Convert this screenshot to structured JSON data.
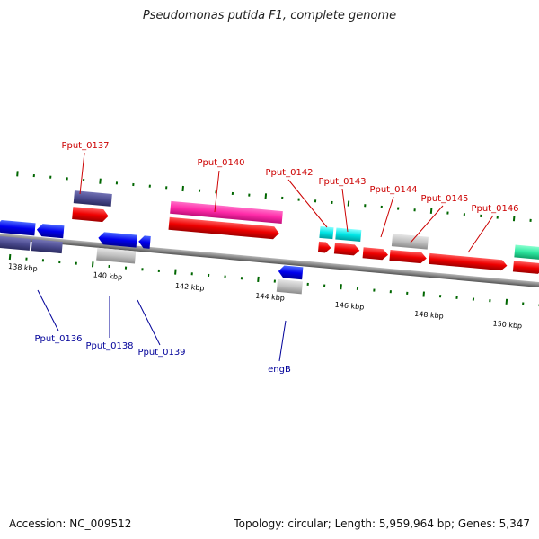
{
  "title": "Pseudomonas putida F1, complete genome",
  "footer": {
    "accession": "Accession: NC_009512",
    "topology": "Topology: circular; Length: 5,959,964 bp; Genes: 5,347"
  },
  "scale": {
    "tick_labels": [
      "138 kbp",
      "140 kbp",
      "142 kbp",
      "144 kbp",
      "146 kbp",
      "148 kbp",
      "150 kbp"
    ]
  },
  "genes": [
    {
      "label": "Pput_0136",
      "strand": "reverse",
      "color": "#0000ff"
    },
    {
      "label": "Pput_0137",
      "strand": "forward",
      "color": "#ff0000"
    },
    {
      "label": "Pput_0138",
      "strand": "reverse",
      "color": "#0000ff"
    },
    {
      "label": "Pput_0139",
      "strand": "reverse",
      "color": "#0000ff"
    },
    {
      "label": "Pput_0140",
      "strand": "forward",
      "color": "#ff0000"
    },
    {
      "label": "engB",
      "strand": "reverse",
      "color": "#0000ff"
    },
    {
      "label": "Pput_0142",
      "strand": "forward",
      "color": "#ff0000"
    },
    {
      "label": "Pput_0143",
      "strand": "forward",
      "color": "#ff0000"
    },
    {
      "label": "Pput_0144",
      "strand": "forward",
      "color": "#ff0000"
    },
    {
      "label": "Pput_0145",
      "strand": "forward",
      "color": "#ff0000"
    },
    {
      "label": "Pput_0146",
      "strand": "forward",
      "color": "#ff0000"
    }
  ],
  "colors": {
    "forward_label": "#cc0000",
    "reverse_label": "#000099",
    "backbone": "#888888",
    "tick": "#006600",
    "cog_purple": "#4b4b8f",
    "cog_pink": "#ff2aa8",
    "cog_cyan": "#00e5e5",
    "cog_gray": "#c0c0c0",
    "cog_green": "#2ee8a0"
  }
}
